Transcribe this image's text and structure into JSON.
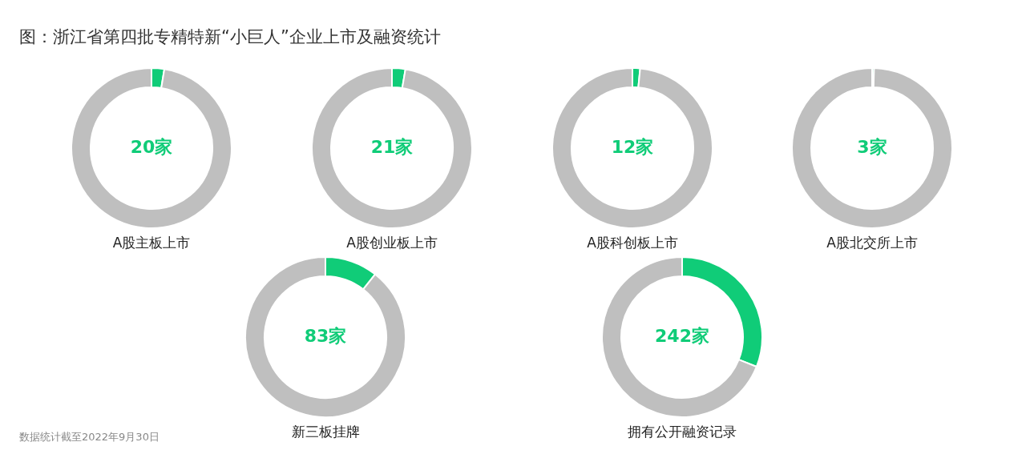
{
  "chart_data": [
    {
      "type": "other",
      "title": "图：浙江省第四批专精特新“小巨人”企业上市及融资统计",
      "annotations": [
        "数据统计截至2022年9月30日"
      ]
    },
    {
      "type": "donut",
      "title": "A股主板上市",
      "categories": [
        null,
        null
      ],
      "values": [
        20,
        760
      ],
      "colors": [
        "#10cc78",
        "#bfbfbf"
      ],
      "value_labels": [
        "20家",
        null
      ]
    },
    {
      "type": "donut",
      "title": "A股创业板上市",
      "categories": [
        null,
        null
      ],
      "values": [
        21,
        759
      ],
      "colors": [
        "#10cc78",
        "#bfbfbf"
      ],
      "value_labels": [
        "21家",
        null
      ]
    },
    {
      "type": "donut",
      "title": "A股科创板上市",
      "categories": [
        null,
        null
      ],
      "values": [
        12,
        768
      ],
      "colors": [
        "#10cc78",
        "#bfbfbf"
      ],
      "value_labels": [
        "12家",
        null
      ]
    },
    {
      "type": "donut",
      "title": "A股北交所上市",
      "categories": [
        null,
        null
      ],
      "values": [
        3,
        777
      ],
      "colors": [
        "#10cc78",
        "#bfbfbf"
      ],
      "value_labels": [
        "3家",
        null
      ]
    },
    {
      "type": "donut",
      "title": "新三板挂牌",
      "categories": [
        null,
        null
      ],
      "values": [
        83,
        697
      ],
      "colors": [
        "#10cc78",
        "#bfbfbf"
      ],
      "value_labels": [
        "83家",
        null
      ]
    },
    {
      "type": "donut",
      "title": "拥有公开融资记录",
      "categories": [
        null,
        null
      ],
      "values": [
        242,
        538
      ],
      "colors": [
        "#10cc78",
        "#bfbfbf"
      ],
      "value_labels": [
        "242家",
        null
      ]
    }
  ]
}
